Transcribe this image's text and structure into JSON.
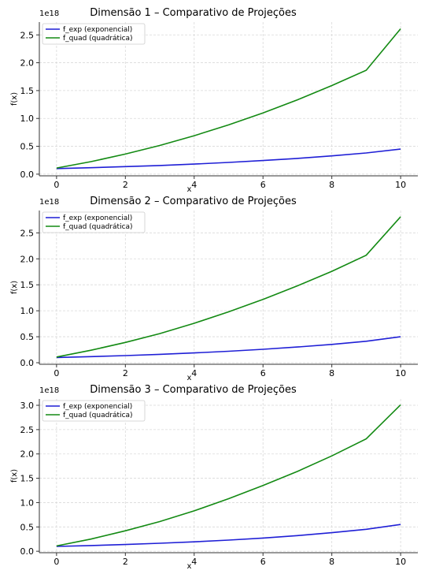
{
  "chart_data": [
    {
      "type": "line",
      "title": "Dimensão 1 – Comparativo de Projeções",
      "xlabel": "x",
      "ylabel": "f(x)",
      "offset_text": "1e18",
      "xlim": [
        -0.5,
        10.5
      ],
      "ylim": [
        -0.03,
        2.73
      ],
      "xticks": [
        0,
        2,
        4,
        6,
        8,
        10
      ],
      "xtick_labels": [
        "0",
        "2",
        "4",
        "6",
        "8",
        "10"
      ],
      "yticks": [
        0,
        0.5,
        1.0,
        1.5,
        2.0,
        2.5
      ],
      "ytick_labels": [
        "0.0",
        "0.5",
        "1.0",
        "1.5",
        "2.0",
        "2.5"
      ],
      "grid": true,
      "legend_position": "top-left",
      "series": [
        {
          "name": "f_exp (exponencial)",
          "color": "#1f1fd6",
          "x": [
            0,
            1,
            2,
            3,
            4,
            5,
            6,
            7,
            8,
            9,
            10
          ],
          "y": [
            0.1,
            0.116,
            0.135,
            0.156,
            0.181,
            0.21,
            0.244,
            0.283,
            0.328,
            0.381,
            0.45
          ]
        },
        {
          "name": "f_quad (quadrática)",
          "color": "#138a13",
          "x": [
            0,
            1,
            2,
            3,
            4,
            5,
            6,
            7,
            8,
            9,
            10
          ],
          "y": [
            0.11,
            0.225,
            0.36,
            0.515,
            0.69,
            0.885,
            1.1,
            1.335,
            1.59,
            1.865,
            2.61
          ]
        }
      ]
    },
    {
      "type": "line",
      "title": "Dimensão 2 – Comparativo de Projeções",
      "xlabel": "x",
      "ylabel": "f(x)",
      "offset_text": "1e18",
      "xlim": [
        -0.5,
        10.5
      ],
      "ylim": [
        -0.03,
        2.93
      ],
      "xticks": [
        0,
        2,
        4,
        6,
        8,
        10
      ],
      "xtick_labels": [
        "0",
        "2",
        "4",
        "6",
        "8",
        "10"
      ],
      "yticks": [
        0,
        0.5,
        1.0,
        1.5,
        2.0,
        2.5
      ],
      "ytick_labels": [
        "0.0",
        "0.5",
        "1.0",
        "1.5",
        "2.0",
        "2.5"
      ],
      "grid": true,
      "legend_position": "top-left",
      "series": [
        {
          "name": "f_exp (exponencial)",
          "color": "#1f1fd6",
          "x": [
            0,
            1,
            2,
            3,
            4,
            5,
            6,
            7,
            8,
            9,
            10
          ],
          "y": [
            0.1,
            0.117,
            0.137,
            0.161,
            0.188,
            0.22,
            0.258,
            0.302,
            0.353,
            0.414,
            0.5
          ]
        },
        {
          "name": "f_quad (quadrática)",
          "color": "#138a13",
          "x": [
            0,
            1,
            2,
            3,
            4,
            5,
            6,
            7,
            8,
            9,
            10
          ],
          "y": [
            0.11,
            0.24,
            0.39,
            0.56,
            0.76,
            0.98,
            1.22,
            1.48,
            1.76,
            2.07,
            2.81
          ]
        }
      ]
    },
    {
      "type": "line",
      "title": "Dimensão 3 – Comparativo de Projeções",
      "xlabel": "x",
      "ylabel": "f(x)",
      "offset_text": "1e18",
      "xlim": [
        -0.5,
        10.5
      ],
      "ylim": [
        -0.03,
        3.13
      ],
      "xticks": [
        0,
        2,
        4,
        6,
        8,
        10
      ],
      "xtick_labels": [
        "0",
        "2",
        "4",
        "6",
        "8",
        "10"
      ],
      "yticks": [
        0,
        0.5,
        1.0,
        1.5,
        2.0,
        2.5,
        3.0
      ],
      "ytick_labels": [
        "0.0",
        "0.5",
        "1.0",
        "1.5",
        "2.0",
        "2.5",
        "3.0"
      ],
      "grid": true,
      "legend_position": "top-left",
      "series": [
        {
          "name": "f_exp (exponencial)",
          "color": "#1f1fd6",
          "x": [
            0,
            1,
            2,
            3,
            4,
            5,
            6,
            7,
            8,
            9,
            10
          ],
          "y": [
            0.1,
            0.118,
            0.139,
            0.164,
            0.194,
            0.23,
            0.272,
            0.322,
            0.381,
            0.451,
            0.55
          ]
        },
        {
          "name": "f_quad (quadrática)",
          "color": "#138a13",
          "x": [
            0,
            1,
            2,
            3,
            4,
            5,
            6,
            7,
            8,
            9,
            10
          ],
          "y": [
            0.11,
            0.25,
            0.42,
            0.61,
            0.83,
            1.08,
            1.35,
            1.64,
            1.96,
            2.31,
            3.01
          ]
        }
      ]
    }
  ]
}
